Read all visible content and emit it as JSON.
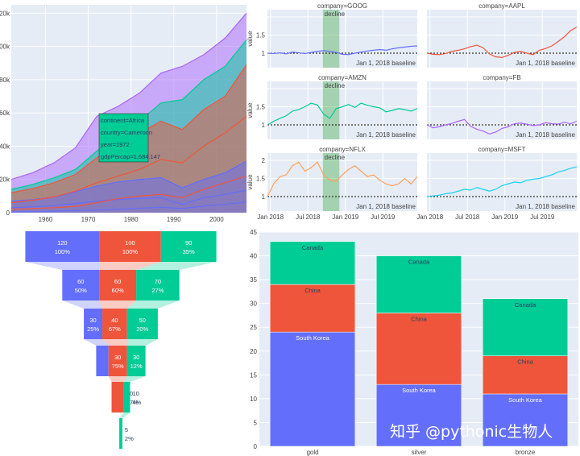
{
  "colors": {
    "blue": "#636efa",
    "red": "#ef553b",
    "green": "#00cc96",
    "purple": "#ab63fa",
    "orange": "#ffa15a",
    "cyan": "#19d3f3",
    "bg": "#e5ecf6"
  },
  "watermark": "知乎 @pythonic生物人",
  "chart_data": [
    {
      "type": "area",
      "x_ticks": [
        "1960",
        "1970",
        "1980",
        "1990",
        "2000"
      ],
      "y_ticks": [
        "0",
        "20k",
        "40k",
        "60k",
        "80k",
        "100k",
        "120k"
      ],
      "x": [
        1952,
        1957,
        1962,
        1967,
        1972,
        1977,
        1982,
        1987,
        1992,
        1997,
        2002,
        2007
      ],
      "series": [
        {
          "color": "blue",
          "values": [
            7000,
            7800,
            9500,
            12500,
            16000,
            18500,
            20000,
            21000,
            15000,
            20000,
            24000,
            31000
          ]
        },
        {
          "color": "red",
          "values": [
            12000,
            14500,
            18000,
            23000,
            33000,
            42000,
            48000,
            55000,
            50000,
            62000,
            70000,
            89000
          ]
        },
        {
          "color": "green",
          "values": [
            14000,
            17000,
            21000,
            26000,
            37000,
            48000,
            55000,
            66000,
            68000,
            80000,
            88000,
            104000
          ]
        },
        {
          "color": "purple",
          "values": [
            20000,
            24000,
            30000,
            39000,
            58000,
            64000,
            72000,
            84000,
            88000,
            95000,
            105000,
            120000
          ]
        }
      ],
      "blue_lines": [
        [
          3000,
          3500,
          4200,
          5500,
          7000,
          8000,
          8500,
          9000,
          5000,
          9000,
          11000,
          13500
        ],
        [
          500,
          700,
          900,
          1200,
          1600,
          2100,
          2700,
          3200,
          2500,
          4000,
          5000,
          6500
        ]
      ],
      "red_lines": [
        [
          2000,
          2500,
          3000,
          3800,
          6000,
          8500,
          10000,
          11000,
          9000,
          14000,
          18000,
          22000
        ],
        [
          6000,
          7500,
          9500,
          13000,
          18000,
          22000,
          26000,
          32000,
          30000,
          40000,
          48000,
          58000
        ]
      ],
      "hover": {
        "lines": [
          "continent=Africa",
          "country=Cameroon",
          "year=1972",
          "gdpPercap=1,684.147"
        ]
      },
      "ylim": [
        0,
        125000
      ]
    },
    {
      "type": "line",
      "facets": [
        {
          "title": "company=GOOG",
          "color": "blue",
          "decline": true,
          "ylabel": "value",
          "y_ticks": [
            "1",
            "1.5"
          ],
          "values": [
            1.0,
            0.99,
            1.01,
            0.98,
            1.03,
            1.01,
            0.99,
            1.02,
            1.05,
            1.07,
            1.05,
            1.02,
            0.97,
            0.96,
            1.0,
            1.03,
            1.06,
            1.08,
            1.1,
            1.08,
            1.12,
            1.15,
            1.17,
            1.19,
            1.2
          ]
        },
        {
          "title": "company=AAPL",
          "color": "red",
          "decline": false,
          "ylabel": "",
          "y_ticks": [],
          "values": [
            1.0,
            0.97,
            0.96,
            0.99,
            1.05,
            1.08,
            1.12,
            1.18,
            1.22,
            1.15,
            0.98,
            0.9,
            0.88,
            0.94,
            1.02,
            1.05,
            1.0,
            0.96,
            1.08,
            1.13,
            1.2,
            1.32,
            1.45,
            1.62,
            1.72
          ]
        },
        {
          "title": "company=AMZN",
          "color": "green",
          "decline": true,
          "ylabel": "value",
          "y_ticks": [
            "1",
            "1.5"
          ],
          "values": [
            1.0,
            1.1,
            1.18,
            1.25,
            1.38,
            1.42,
            1.5,
            1.6,
            1.55,
            1.3,
            1.18,
            1.45,
            1.5,
            1.56,
            1.48,
            1.6,
            1.54,
            1.5,
            1.47,
            1.36,
            1.4,
            1.45,
            1.42,
            1.38,
            1.45
          ]
        },
        {
          "title": "company=FB",
          "color": "purple",
          "decline": false,
          "ylabel": "",
          "y_ticks": [],
          "values": [
            1.0,
            0.92,
            0.95,
            1.0,
            1.04,
            1.1,
            1.15,
            0.96,
            0.88,
            0.83,
            0.75,
            0.8,
            0.9,
            0.95,
            1.03,
            1.05,
            1.02,
            0.98,
            1.0,
            1.06,
            1.03,
            1.02,
            1.07,
            1.03,
            1.1
          ]
        },
        {
          "title": "company=NFLX",
          "color": "orange",
          "decline": true,
          "ylabel": "value",
          "y_ticks": [
            "1",
            "1.5",
            "2"
          ],
          "values": [
            1.0,
            1.35,
            1.55,
            1.6,
            1.85,
            1.95,
            1.7,
            1.8,
            1.95,
            1.6,
            1.45,
            1.42,
            1.6,
            1.75,
            1.85,
            1.7,
            1.55,
            1.6,
            1.45,
            1.35,
            1.3,
            1.35,
            1.5,
            1.35,
            1.55
          ]
        },
        {
          "title": "company=MSFT",
          "color": "cyan",
          "decline": false,
          "ylabel": "",
          "y_ticks": [],
          "values": [
            1.0,
            1.02,
            1.04,
            1.08,
            1.1,
            1.15,
            1.2,
            1.18,
            1.25,
            1.2,
            1.15,
            1.2,
            1.3,
            1.35,
            1.4,
            1.38,
            1.45,
            1.48,
            1.5,
            1.55,
            1.6,
            1.68,
            1.72,
            1.78,
            1.82
          ]
        }
      ],
      "x_ticks": [
        "Jan 2018",
        "Jul 2018",
        "Jan 2019",
        "Jul 2019"
      ],
      "annotation_decline": "decline",
      "annotation_baseline": "Jan 1, 2018 baseline",
      "ylim": [
        0.6,
        2.2
      ]
    },
    {
      "type": "funnel",
      "stages": [
        {
          "blue": 120,
          "blue_pct": "100%",
          "red": 100,
          "red_pct": "100%",
          "green": 90,
          "green_pct": "35%"
        },
        {
          "blue": 60,
          "blue_pct": "50%",
          "red": 60,
          "red_pct": "60%",
          "green": 70,
          "green_pct": "27%"
        },
        {
          "blue": 30,
          "blue_pct": "25%",
          "red": 40,
          "red_pct": "67%",
          "green": 50,
          "green_pct": "20%"
        },
        {
          "blue": 20,
          "blue_pct": "17%",
          "red": 30,
          "red_pct": "75%",
          "green": 30,
          "green_pct": "12%"
        },
        {
          "blue": 0,
          "blue_pct": "",
          "red": 20,
          "red_pct": "67%",
          "green": 10,
          "green_pct": "4%"
        },
        {
          "blue": 0,
          "blue_pct": "",
          "red": 0,
          "red_pct": "",
          "green": 5,
          "green_pct": "2%"
        }
      ]
    },
    {
      "type": "bar",
      "categories": [
        "gold",
        "silver",
        "bronze"
      ],
      "series": [
        {
          "name": "South Korea",
          "color": "blue",
          "values": [
            24,
            13,
            11
          ]
        },
        {
          "name": "China",
          "color": "red",
          "values": [
            10,
            15,
            8
          ]
        },
        {
          "name": "Canada",
          "color": "green",
          "values": [
            9,
            12,
            12
          ]
        }
      ],
      "y_ticks": [
        "0",
        "5",
        "10",
        "15",
        "20",
        "25",
        "30",
        "35",
        "40",
        "45"
      ],
      "ylim": [
        0,
        45
      ]
    }
  ]
}
